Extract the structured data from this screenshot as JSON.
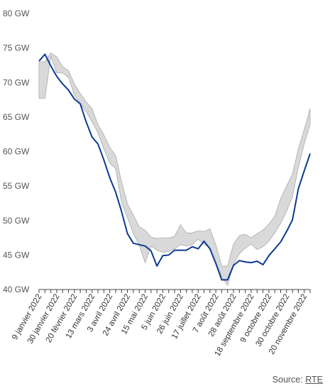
{
  "chart_data": {
    "type": "line",
    "title": "",
    "xlabel": "",
    "ylabel": "",
    "unit": "GW",
    "ylim": [
      40,
      80
    ],
    "y_ticks": [
      40,
      45,
      50,
      55,
      60,
      65,
      70,
      75,
      80
    ],
    "y_tick_labels": [
      "40 GW",
      "45 GW",
      "50 GW",
      "55 GW",
      "60 GW",
      "65 GW",
      "70 GW",
      "75 GW",
      "80 GW"
    ],
    "x_tick_labels": [
      "9 janvier 2022",
      "30 janvier 2022",
      "20 février 2022",
      "13 mars 2022",
      "3 avril 2022",
      "24 avril 2022",
      "15 mai 2022",
      "5 juin 2022",
      "26 juin 2022",
      "17 juillet 2022",
      "7 août 2022",
      "28 août 2022",
      "18 septembre 2022",
      "9 octobre 2022",
      "30 octobre 2022",
      "20 novembre 2022"
    ],
    "weeks_per_tick": 3,
    "grid": false,
    "line_color": "#0b3a94",
    "band_fill": "#d9d9d9",
    "band_stroke": "#aaaaaa",
    "series": [
      {
        "kind": "line",
        "values": [
          73.1,
          74.1,
          72.4,
          70.9,
          69.8,
          68.9,
          67.6,
          66.9,
          64.3,
          62.1,
          61.1,
          58.8,
          56.2,
          54.1,
          51.3,
          48.1,
          46.7,
          46.5,
          46.3,
          45.6,
          43.4,
          44.9,
          45.0,
          45.7,
          45.7,
          45.7,
          46.2,
          45.9,
          47.0,
          45.9,
          43.8,
          41.4,
          41.4,
          43.5,
          44.2,
          44.0,
          43.9,
          44.1,
          43.6,
          44.9,
          45.9,
          46.9,
          48.4,
          50.1,
          54.6,
          57.2,
          59.7
        ]
      },
      {
        "kind": "band",
        "upper": [
          73.0,
          73.0,
          74.3,
          73.7,
          72.3,
          71.7,
          69.8,
          68.4,
          67.2,
          66.2,
          63.9,
          62.4,
          60.6,
          59.4,
          55.6,
          52.4,
          50.8,
          49.1,
          48.6,
          47.6,
          47.4,
          47.5,
          47.5,
          47.7,
          49.4,
          48.2,
          48.2,
          48.5,
          48.4,
          48.8,
          46.5,
          43.4,
          43.4,
          46.6,
          47.8,
          48.0,
          47.5,
          48.1,
          48.6,
          49.5,
          50.6,
          53.2,
          55.0,
          56.7,
          60.4,
          63.2,
          66.2
        ],
        "lower": [
          67.7,
          67.7,
          73.8,
          71.4,
          71.4,
          70.7,
          68.2,
          66.9,
          65.8,
          64.3,
          62.7,
          60.4,
          58.3,
          57.5,
          52.6,
          50.4,
          48.1,
          46.4,
          43.9,
          46.3,
          45.7,
          45.4,
          45.5,
          45.9,
          46.5,
          46.3,
          46.5,
          47.3,
          46.5,
          46.1,
          43.8,
          41.9,
          40.6,
          43.7,
          45.2,
          46.0,
          46.6,
          45.8,
          46.2,
          47.0,
          48.2,
          49.6,
          51.3,
          53.5,
          57.7,
          61.1,
          63.9
        ]
      }
    ]
  },
  "source": {
    "label": "Source: ",
    "link": "RTE"
  }
}
